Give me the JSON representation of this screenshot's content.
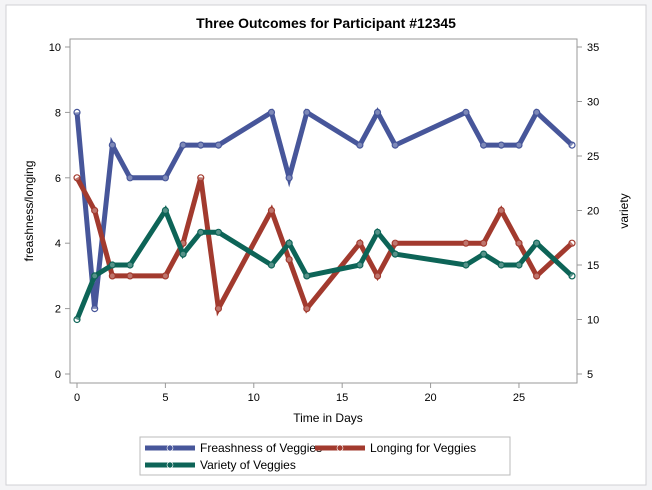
{
  "chart_data": {
    "type": "line",
    "title": "Three Outcomes for Participant #12345",
    "xlabel": "Time in Days",
    "ylabel": "freashness/longing",
    "y2label": "variety",
    "xlim": [
      0,
      28
    ],
    "ylim": [
      0,
      10
    ],
    "y2lim": [
      5,
      35
    ],
    "xticks": [
      "0",
      "5",
      "10",
      "15",
      "20",
      "25"
    ],
    "yticks": [
      "0",
      "2",
      "4",
      "6",
      "8",
      "10"
    ],
    "y2ticks": [
      "5",
      "10",
      "15",
      "20",
      "25",
      "30",
      "35"
    ],
    "legend_position": "bottom",
    "x": [
      0,
      1,
      2,
      3,
      5,
      6,
      7,
      8,
      11,
      12,
      13,
      16,
      17,
      18,
      22,
      23,
      24,
      25,
      26,
      28
    ],
    "series": [
      {
        "name": "Freashness of Veggies",
        "axis": "left",
        "color": "#47569a",
        "values": [
          8,
          2,
          7,
          6,
          6,
          7,
          7,
          7,
          8,
          6,
          8,
          7,
          8,
          7,
          8,
          7,
          7,
          7,
          8,
          7
        ]
      },
      {
        "name": "Longing for Veggies",
        "axis": "left",
        "color": "#a23a2e",
        "values": [
          6,
          5,
          3,
          3,
          3,
          4,
          6,
          2,
          5,
          3.5,
          2,
          4,
          3,
          4,
          4,
          4,
          5,
          4,
          3,
          4
        ]
      },
      {
        "name": "Variety of Veggies",
        "axis": "right",
        "color": "#0d6457",
        "values": [
          10,
          14,
          15,
          15,
          20,
          16,
          18,
          18,
          15,
          17,
          14,
          15,
          18,
          16,
          15,
          16,
          15,
          15,
          17,
          14
        ]
      }
    ]
  }
}
